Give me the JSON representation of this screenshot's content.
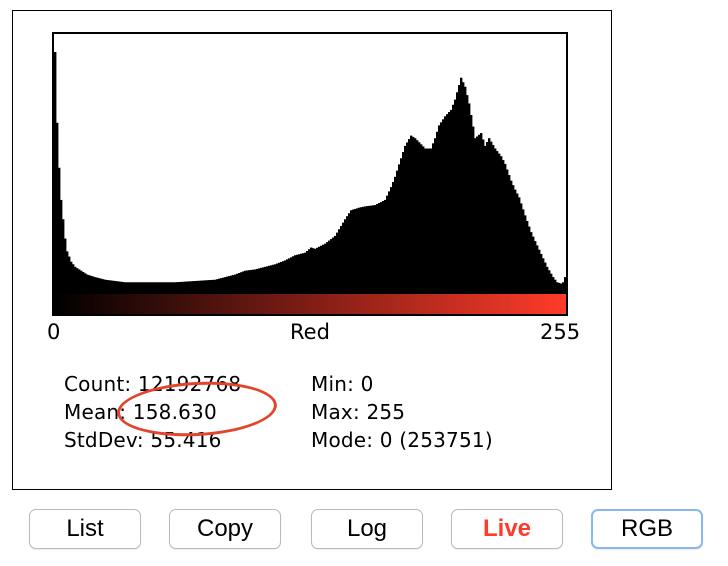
{
  "histogram": {
    "channel_label": "Red",
    "axis": {
      "min_label": "0",
      "max_label": "255"
    },
    "colors": {
      "bar_fill": "#000000",
      "gradient_start": "#000000",
      "gradient_end": "#ff3b2a",
      "annotation": "#e2452b",
      "live_text": "#ff3b2a",
      "rgb_border": "#87b8ee"
    },
    "counts_profile": [
      [
        0,
        185
      ],
      [
        1,
        130
      ],
      [
        2,
        95
      ],
      [
        3,
        70
      ],
      [
        4,
        55
      ],
      [
        5,
        40
      ],
      [
        6,
        30
      ],
      [
        7,
        26
      ],
      [
        8,
        22
      ],
      [
        9,
        20
      ],
      [
        10,
        18
      ],
      [
        12,
        16
      ],
      [
        14,
        14
      ],
      [
        16,
        12
      ],
      [
        18,
        11
      ],
      [
        20,
        10
      ],
      [
        25,
        8
      ],
      [
        30,
        7
      ],
      [
        35,
        6
      ],
      [
        40,
        6
      ],
      [
        50,
        6
      ],
      [
        60,
        6
      ],
      [
        70,
        7
      ],
      [
        80,
        8
      ],
      [
        85,
        10
      ],
      [
        90,
        12
      ],
      [
        95,
        15
      ],
      [
        100,
        16
      ],
      [
        105,
        18
      ],
      [
        110,
        20
      ],
      [
        115,
        23
      ],
      [
        120,
        27
      ],
      [
        125,
        29
      ],
      [
        128,
        33
      ],
      [
        130,
        32
      ],
      [
        135,
        36
      ],
      [
        140,
        42
      ],
      [
        145,
        55
      ],
      [
        148,
        62
      ],
      [
        152,
        64
      ],
      [
        155,
        65
      ],
      [
        160,
        66
      ],
      [
        165,
        70
      ],
      [
        168,
        80
      ],
      [
        170,
        88
      ],
      [
        175,
        112
      ],
      [
        178,
        120
      ],
      [
        180,
        118
      ],
      [
        185,
        110
      ],
      [
        188,
        110
      ],
      [
        190,
        118
      ],
      [
        192,
        128
      ],
      [
        195,
        135
      ],
      [
        198,
        140
      ],
      [
        200,
        148
      ],
      [
        203,
        165
      ],
      [
        205,
        158
      ],
      [
        207,
        145
      ],
      [
        210,
        118
      ],
      [
        213,
        122
      ],
      [
        215,
        112
      ],
      [
        217,
        118
      ],
      [
        220,
        110
      ],
      [
        223,
        104
      ],
      [
        225,
        98
      ],
      [
        228,
        85
      ],
      [
        230,
        78
      ],
      [
        232,
        72
      ],
      [
        235,
        58
      ],
      [
        238,
        45
      ],
      [
        240,
        38
      ],
      [
        243,
        28
      ],
      [
        246,
        18
      ],
      [
        249,
        10
      ],
      [
        251,
        6
      ],
      [
        253,
        5
      ],
      [
        254,
        6
      ],
      [
        255,
        10
      ]
    ],
    "profile_max": 185
  },
  "stats": {
    "count_label": "Count:",
    "count_value": "12192768",
    "mean_label": "Mean:",
    "mean_value": "158.630",
    "stddev_label": "StdDev:",
    "stddev_value": "55.416",
    "min_label": "Min:",
    "min_value": "0",
    "max_label": "Max:",
    "max_value": "255",
    "mode_label": "Mode:",
    "mode_value": "0 (253751)"
  },
  "buttons": {
    "list": "List",
    "copy": "Copy",
    "log": "Log",
    "live": "Live",
    "rgb": "RGB"
  }
}
